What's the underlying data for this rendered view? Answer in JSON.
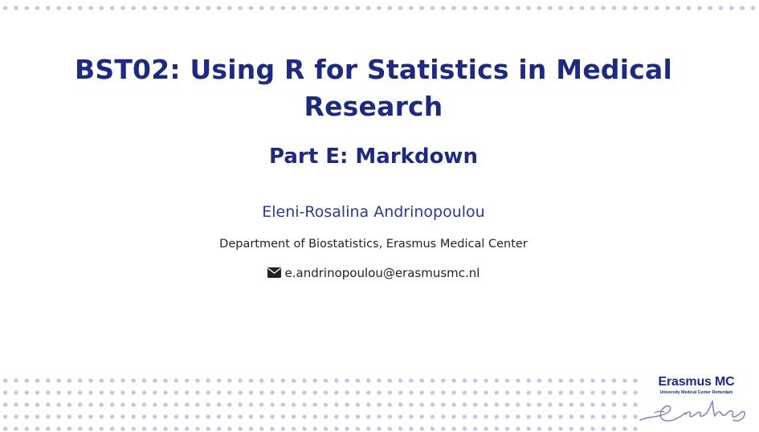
{
  "slide": {
    "title": "BST02: Using R for Statistics in Medical Research",
    "subtitle": "Part E: Markdown",
    "author": "Eleni-Rosalina Andrinopoulou",
    "affiliation": "Department of Biostatistics, Erasmus Medical Center",
    "email": "e.andrinopoulou@erasmusmc.nl",
    "email_icon": "envelope-icon"
  },
  "logo": {
    "name": "Erasmus MC",
    "tagline": "University Medical Center Rotterdam",
    "signature": "Erasmus signature"
  },
  "colors": {
    "title": "#1d2a80",
    "dots": "#c3c8e1",
    "text": "#222222"
  }
}
